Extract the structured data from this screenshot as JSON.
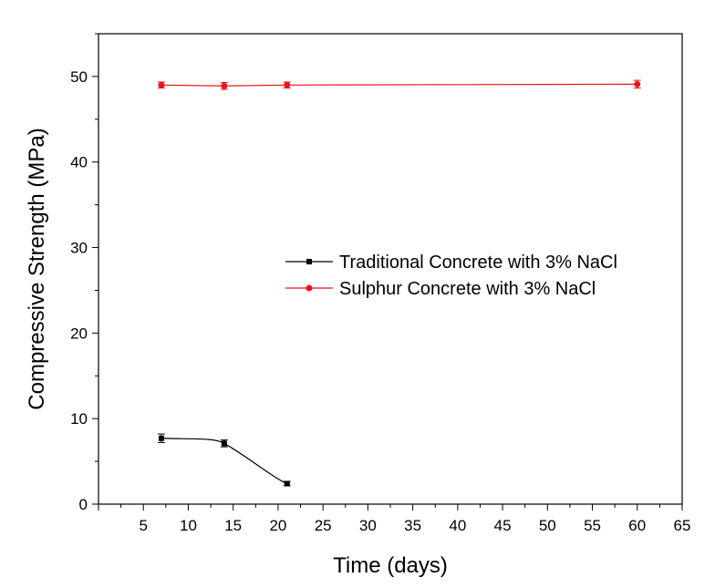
{
  "chart_data": {
    "type": "line",
    "title": "",
    "xlabel": "Time (days)",
    "ylabel": "Compressive Strength (MPa)",
    "xlim": [
      0,
      65
    ],
    "ylim": [
      0,
      55
    ],
    "xticks": [
      5,
      10,
      15,
      20,
      25,
      30,
      35,
      40,
      45,
      50,
      55,
      60,
      65
    ],
    "yticks": [
      0,
      10,
      20,
      30,
      40,
      50
    ],
    "grid": false,
    "legend_position": "center-right",
    "series": [
      {
        "name": "Traditional Concrete with 3% NaCl",
        "color": "#000000",
        "marker": "square",
        "x": [
          7,
          14,
          21
        ],
        "y": [
          7.7,
          7.1,
          2.4
        ],
        "error": [
          0.5,
          0.4,
          0.25
        ]
      },
      {
        "name": "Sulphur Concrete with 3% NaCl",
        "color": "#e8141c",
        "marker": "circle",
        "x": [
          7,
          14,
          21,
          60
        ],
        "y": [
          49.0,
          48.9,
          49.0,
          49.1
        ],
        "error": [
          0.35,
          0.4,
          0.35,
          0.45
        ]
      }
    ]
  }
}
